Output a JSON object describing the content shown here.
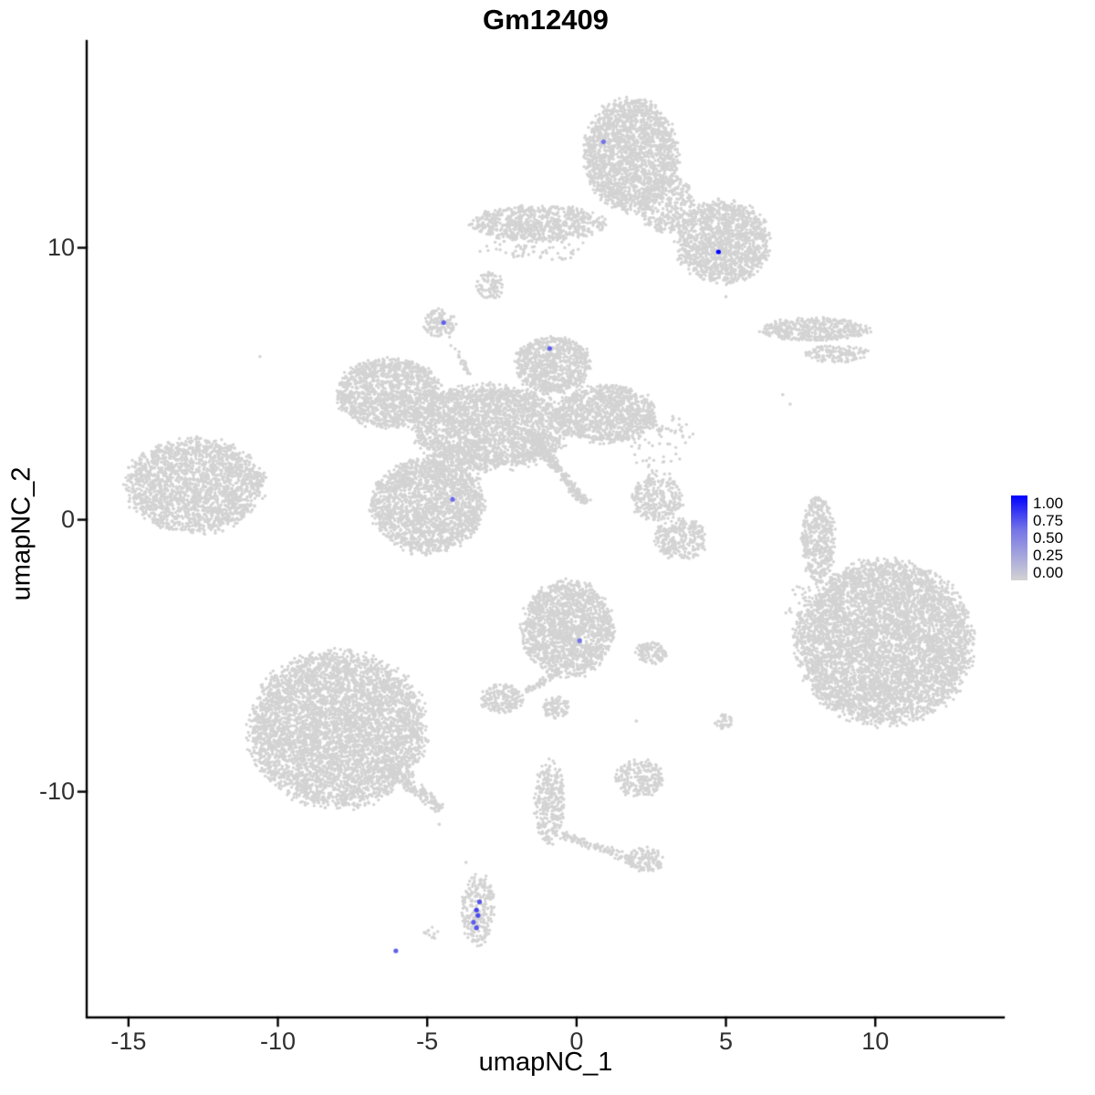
{
  "chart_data": {
    "type": "scatter",
    "title": "Gm12409",
    "xlabel": "umapNC_1",
    "ylabel": "umapNC_2",
    "xlim": [
      -16.4,
      14.3
    ],
    "ylim": [
      -18.3,
      17.6
    ],
    "x_tick_values": [
      -15,
      -10,
      -5,
      0,
      5,
      10
    ],
    "x_tick_labels": [
      "-15",
      "-10",
      "-5",
      "0",
      "5",
      "10"
    ],
    "y_tick_values": [
      -10,
      0,
      10
    ],
    "y_tick_labels": [
      "-10",
      "0",
      "10"
    ],
    "grid": false,
    "legend_position": "right",
    "point_color_low": "#D3D3D3",
    "point_color_high": "#0000FF",
    "legend": {
      "labels": [
        "1.00",
        "0.75",
        "0.50",
        "0.25",
        "0.00"
      ]
    },
    "background_clusters": [
      {
        "cx": 1.8,
        "cy": 13.4,
        "rx": 1.55,
        "ry": 2.05,
        "n": 1900
      },
      {
        "cx": 4.9,
        "cy": 10.2,
        "rx": 1.55,
        "ry": 1.5,
        "n": 1400
      },
      {
        "cx": 3.0,
        "cy": 11.6,
        "rx": 0.95,
        "ry": 1.05,
        "n": 350
      },
      {
        "cx": -1.3,
        "cy": 10.9,
        "rx": 2.2,
        "ry": 0.65,
        "n": 700
      },
      {
        "cx": -1.5,
        "cy": 10.0,
        "rx": 1.8,
        "ry": 0.5,
        "n": 70
      },
      {
        "cx": -2.9,
        "cy": 8.6,
        "rx": 0.45,
        "ry": 0.5,
        "n": 90
      },
      {
        "cx": -4.6,
        "cy": 7.25,
        "rx": 0.55,
        "ry": 0.5,
        "n": 120
      },
      {
        "cx": -0.8,
        "cy": 5.7,
        "rx": 1.25,
        "ry": 1.05,
        "n": 800
      },
      {
        "cx": -6.3,
        "cy": 4.65,
        "rx": 1.75,
        "ry": 1.25,
        "n": 1300
      },
      {
        "cx": -2.9,
        "cy": 3.4,
        "rx": 2.6,
        "ry": 1.55,
        "n": 2400
      },
      {
        "cx": 1.0,
        "cy": 3.9,
        "rx": 1.65,
        "ry": 1.05,
        "n": 1000
      },
      {
        "cx": -5.0,
        "cy": 0.5,
        "rx": 1.85,
        "ry": 1.7,
        "n": 1900
      },
      {
        "cx": -4.0,
        "cy": 2.0,
        "rx": 1.0,
        "ry": 0.8,
        "n": 120
      },
      {
        "cx": -12.8,
        "cy": 1.25,
        "rx": 2.25,
        "ry": 1.72,
        "n": 2000
      },
      {
        "cx": -10.8,
        "cy": 1.6,
        "rx": 0.4,
        "ry": 0.3,
        "n": 40
      },
      {
        "cx": 8.0,
        "cy": 7.0,
        "rx": 1.8,
        "ry": 0.42,
        "n": 420
      },
      {
        "cx": 8.7,
        "cy": 6.1,
        "rx": 1.1,
        "ry": 0.3,
        "n": 140
      },
      {
        "cx": 8.1,
        "cy": -0.7,
        "rx": 0.55,
        "ry": 1.6,
        "n": 420
      },
      {
        "cx": 8.5,
        "cy": -3.2,
        "rx": 0.5,
        "ry": 1.2,
        "n": 40
      },
      {
        "cx": 2.7,
        "cy": 0.8,
        "rx": 0.85,
        "ry": 0.85,
        "n": 280
      },
      {
        "cx": 3.5,
        "cy": -0.7,
        "rx": 0.9,
        "ry": 0.75,
        "n": 280
      },
      {
        "cx": 2.8,
        "cy": 2.8,
        "rx": 1.2,
        "ry": 1.2,
        "n": 70
      },
      {
        "cx": 10.3,
        "cy": -4.5,
        "rx": 2.9,
        "ry": 2.95,
        "n": 5200
      },
      {
        "cx": 7.6,
        "cy": -3.5,
        "rx": 0.6,
        "ry": 1.2,
        "n": 50
      },
      {
        "cx": -0.3,
        "cy": -4.0,
        "rx": 1.5,
        "ry": 1.75,
        "n": 1600
      },
      {
        "cx": -2.5,
        "cy": -6.6,
        "rx": 0.7,
        "ry": 0.55,
        "n": 180
      },
      {
        "cx": -0.7,
        "cy": -6.9,
        "rx": 0.45,
        "ry": 0.4,
        "n": 90
      },
      {
        "cx": 2.5,
        "cy": -4.9,
        "rx": 0.55,
        "ry": 0.4,
        "n": 110
      },
      {
        "cx": 4.9,
        "cy": -7.4,
        "rx": 0.3,
        "ry": 0.3,
        "n": 40
      },
      {
        "cx": -8.0,
        "cy": -7.7,
        "rx": 2.9,
        "ry": 2.8,
        "n": 4600
      },
      {
        "cx": 2.1,
        "cy": -9.5,
        "rx": 0.8,
        "ry": 0.7,
        "n": 220
      },
      {
        "cx": -0.9,
        "cy": -10.4,
        "rx": 0.5,
        "ry": 1.5,
        "n": 300
      },
      {
        "cx": 2.3,
        "cy": -12.5,
        "rx": 0.6,
        "ry": 0.45,
        "n": 120
      },
      {
        "cx": -3.3,
        "cy": -14.3,
        "rx": 0.55,
        "ry": 1.3,
        "n": 260
      },
      {
        "cx": -4.9,
        "cy": -15.2,
        "rx": 0.3,
        "ry": 0.25,
        "n": 12
      }
    ],
    "background_lines": [
      {
        "x1": -4.35,
        "y1": 6.8,
        "x2": -3.6,
        "y2": 5.3,
        "w": 0.15,
        "n": 25
      },
      {
        "x1": -1.6,
        "y1": 3.2,
        "x2": 0.3,
        "y2": 0.6,
        "w": 0.25,
        "n": 260
      },
      {
        "x1": 2.2,
        "y1": 3.7,
        "x2": 2.9,
        "y2": 3.3,
        "w": 0.2,
        "n": 30
      },
      {
        "x1": -0.6,
        "y1": -5.6,
        "x2": -1.7,
        "y2": -6.3,
        "w": 0.2,
        "n": 60
      },
      {
        "x1": -6.2,
        "y1": -9.3,
        "x2": -4.5,
        "y2": -10.6,
        "w": 0.35,
        "n": 140
      },
      {
        "x1": -0.5,
        "y1": -11.6,
        "x2": 1.9,
        "y2": -12.5,
        "w": 0.22,
        "n": 120
      }
    ],
    "singles": [
      [
        -10.6,
        6.0
      ],
      [
        6.9,
        4.6
      ],
      [
        7.15,
        4.25
      ],
      [
        5.0,
        8.2
      ],
      [
        5.6,
        9.0
      ],
      [
        7.8,
        -2.6
      ],
      [
        8.3,
        -3.4
      ],
      [
        8.9,
        -4.6
      ],
      [
        8.0,
        -5.0
      ],
      [
        -3.7,
        -12.6
      ],
      [
        -4.6,
        -11.2
      ],
      [
        2.0,
        -7.4
      ]
    ],
    "expressing_cells": [
      {
        "x": 0.9,
        "y": 13.9,
        "value": 0.45
      },
      {
        "x": 4.75,
        "y": 9.85,
        "value": 1.0
      },
      {
        "x": -4.45,
        "y": 7.25,
        "value": 0.55
      },
      {
        "x": -0.9,
        "y": 6.3,
        "value": 0.55
      },
      {
        "x": -4.15,
        "y": 0.75,
        "value": 0.5
      },
      {
        "x": 0.1,
        "y": -4.45,
        "value": 0.45
      },
      {
        "x": -3.25,
        "y": -14.05,
        "value": 0.6
      },
      {
        "x": -3.35,
        "y": -14.35,
        "value": 0.7
      },
      {
        "x": -3.3,
        "y": -14.55,
        "value": 0.65
      },
      {
        "x": -3.45,
        "y": -14.8,
        "value": 0.55
      },
      {
        "x": -3.35,
        "y": -15.0,
        "value": 0.6
      },
      {
        "x": -6.05,
        "y": -15.85,
        "value": 0.55
      }
    ]
  }
}
